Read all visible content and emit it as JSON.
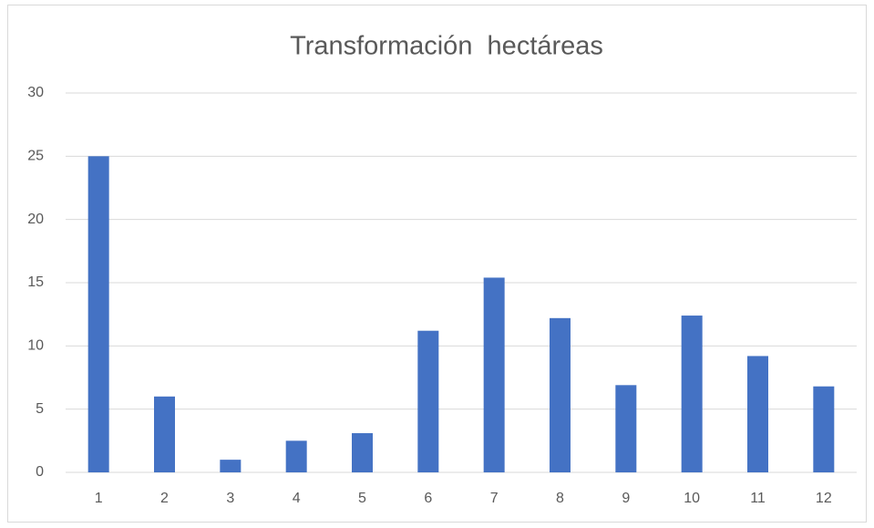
{
  "chart_data": {
    "type": "bar",
    "title": "Transformación  hectáreas",
    "categories": [
      "1",
      "2",
      "3",
      "4",
      "5",
      "6",
      "7",
      "8",
      "9",
      "10",
      "11",
      "12"
    ],
    "values": [
      25,
      6,
      1,
      2.5,
      3.1,
      11.2,
      15.4,
      12.2,
      6.9,
      12.4,
      9.2,
      6.8
    ],
    "color": "#4472c4",
    "ylim": [
      0,
      30
    ],
    "yticks": [
      0,
      5,
      10,
      15,
      20,
      25,
      30
    ],
    "grid": true
  }
}
